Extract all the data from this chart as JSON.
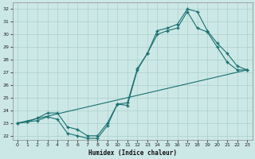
{
  "xlabel": "Humidex (Indice chaleur)",
  "bg_color": "#cce8e6",
  "line_color": "#1a7070",
  "grid_color": "#aacfcc",
  "xlim": [
    -0.5,
    23.5
  ],
  "ylim": [
    21.7,
    32.5
  ],
  "xticks": [
    0,
    1,
    2,
    3,
    4,
    5,
    6,
    7,
    8,
    9,
    10,
    11,
    12,
    13,
    14,
    15,
    16,
    17,
    18,
    19,
    20,
    21,
    22,
    23
  ],
  "yticks": [
    22,
    23,
    24,
    25,
    26,
    27,
    28,
    29,
    30,
    31,
    32
  ],
  "series1_x": [
    0,
    1,
    2,
    3,
    4,
    5,
    6,
    7,
    8,
    9,
    10,
    11,
    12,
    13,
    14,
    15,
    16,
    17,
    18,
    19,
    20,
    21,
    22,
    23
  ],
  "series1_y": [
    23.0,
    23.1,
    23.2,
    23.5,
    23.3,
    22.2,
    22.0,
    21.8,
    21.8,
    22.8,
    24.5,
    24.4,
    27.2,
    28.5,
    30.0,
    30.3,
    30.5,
    31.8,
    30.5,
    30.2,
    29.0,
    27.8,
    27.2,
    27.2
  ],
  "series2_x": [
    0,
    1,
    2,
    3,
    4,
    5,
    6,
    7,
    8,
    9,
    10,
    11,
    12,
    13,
    14,
    15,
    16,
    17,
    18,
    19,
    20,
    21,
    22,
    23
  ],
  "series2_y": [
    23.0,
    23.1,
    23.4,
    23.8,
    23.8,
    22.7,
    22.5,
    22.0,
    22.0,
    23.0,
    24.5,
    24.6,
    27.3,
    28.5,
    30.3,
    30.5,
    30.8,
    32.0,
    31.8,
    30.3,
    29.3,
    28.5,
    27.5,
    27.2
  ],
  "series3_x": [
    0,
    23
  ],
  "series3_y": [
    23.0,
    27.2
  ]
}
